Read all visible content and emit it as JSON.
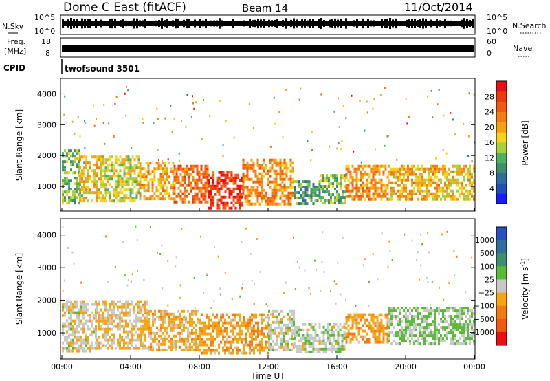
{
  "header": {
    "title": "Dome C East (fitACF)",
    "beam": "Beam 14",
    "date": "11/Oct/2014"
  },
  "sky_panel": {
    "left_label": "N.Sky",
    "left_ticks": [
      "10^5",
      "10^0"
    ],
    "right_label": "N.Search",
    "right_ticks": [
      "10^5",
      "10^0"
    ]
  },
  "freq_panel": {
    "left_label_line1": "Freq.",
    "left_label_line2": "[MHz]",
    "left_ticks": [
      "18",
      "8"
    ],
    "right_label": "Nave",
    "right_ticks": [
      "60",
      "0"
    ]
  },
  "cpid": {
    "label": "CPID",
    "value": "twofsound 3501"
  },
  "colors": {
    "power_scale": [
      "#1a1aff",
      "#234fb8",
      "#2e6e9e",
      "#3f8f6f",
      "#4fb060",
      "#a8cf3a",
      "#f5d21d",
      "#f5a015",
      "#f27d12",
      "#ef5a10",
      "#ec3a10",
      "#e81010"
    ],
    "velocity_scale": [
      "#2a4fbf",
      "#2e6f9c",
      "#3f8f6f",
      "#57bb37",
      "#c8c8c8",
      "#f5a514",
      "#f27a12",
      "#ef5a10",
      "#e81010"
    ]
  },
  "chart_data": [
    {
      "type": "heatmap",
      "name": "power",
      "xlabel": "Time UT",
      "ylabel": "Slant Range [km]",
      "x_ticks": [
        "00:00",
        "04:00",
        "08:00",
        "12:00",
        "16:00",
        "20:00",
        "00:00"
      ],
      "xlim_hours": [
        0,
        24
      ],
      "ylim": [
        200,
        4500
      ],
      "y_ticks": [
        1000,
        2000,
        3000,
        4000
      ],
      "colorbar": {
        "label": "Power [dB]",
        "range": [
          0,
          32
        ],
        "tick_values": [
          4,
          8,
          12,
          16,
          20,
          24,
          28
        ]
      },
      "bands": [
        {
          "t": [
            0.0,
            1.0
          ],
          "range": [
            450,
            2200
          ],
          "value": 13
        },
        {
          "t": [
            1.0,
            2.5
          ],
          "range": [
            500,
            2000
          ],
          "value": 18
        },
        {
          "t": [
            2.5,
            4.5
          ],
          "range": [
            500,
            2000
          ],
          "value": 16
        },
        {
          "t": [
            4.5,
            6.5
          ],
          "range": [
            600,
            1800
          ],
          "value": 20
        },
        {
          "t": [
            6.5,
            8.5
          ],
          "range": [
            500,
            1700
          ],
          "value": 25
        },
        {
          "t": [
            8.5,
            10.5
          ],
          "range": [
            300,
            1500
          ],
          "value": 29
        },
        {
          "t": [
            10.5,
            13.5
          ],
          "range": [
            400,
            1900
          ],
          "value": 22
        },
        {
          "t": [
            13.5,
            15.0
          ],
          "range": [
            400,
            1200
          ],
          "value": 10
        },
        {
          "t": [
            15.0,
            16.5
          ],
          "range": [
            500,
            1400
          ],
          "value": 12
        },
        {
          "t": [
            16.5,
            19.0
          ],
          "range": [
            600,
            1700
          ],
          "value": 22
        },
        {
          "t": [
            19.0,
            22.0
          ],
          "range": [
            600,
            1700
          ],
          "value": 20
        },
        {
          "t": [
            22.0,
            24.0
          ],
          "range": [
            600,
            1700
          ],
          "value": 18
        }
      ]
    },
    {
      "type": "heatmap",
      "name": "velocity",
      "xlabel": "Time UT",
      "ylabel": "Slant Range [km]",
      "x_ticks": [
        "00:00",
        "04:00",
        "08:00",
        "12:00",
        "16:00",
        "20:00",
        "00:00"
      ],
      "xlim_hours": [
        0,
        24
      ],
      "ylim": [
        200,
        4500
      ],
      "y_ticks": [
        1000,
        2000,
        3000,
        4000
      ],
      "colorbar": {
        "label": "Velocity [m s-1]",
        "tick_labels": [
          "1000",
          "500",
          "100",
          "25",
          "-25",
          "-100",
          "-500",
          "-1000"
        ]
      },
      "bands": [
        {
          "t": [
            0.0,
            2.0
          ],
          "range": [
            400,
            2000
          ],
          "value": -50
        },
        {
          "t": [
            2.0,
            5.0
          ],
          "range": [
            500,
            2000
          ],
          "value": -150
        },
        {
          "t": [
            5.0,
            8.0
          ],
          "range": [
            500,
            1700
          ],
          "value": -200
        },
        {
          "t": [
            8.0,
            12.0
          ],
          "range": [
            400,
            1600
          ],
          "value": -300
        },
        {
          "t": [
            12.0,
            13.5
          ],
          "range": [
            500,
            1700
          ],
          "value": 0
        },
        {
          "t": [
            13.5,
            16.5
          ],
          "range": [
            400,
            1300
          ],
          "value": 50
        },
        {
          "t": [
            16.5,
            19.0
          ],
          "range": [
            700,
            1600
          ],
          "value": -300
        },
        {
          "t": [
            19.0,
            24.0
          ],
          "range": [
            700,
            1800
          ],
          "value": 150
        }
      ]
    }
  ],
  "velocity_colorbar_tick_labels": [
    "1000",
    "500",
    "100",
    "25",
    "−25",
    "−100",
    "−500",
    "−1000"
  ],
  "velocity_label_main": "Velocity [m s",
  "velocity_label_sup": "-1",
  "velocity_label_end": "]"
}
